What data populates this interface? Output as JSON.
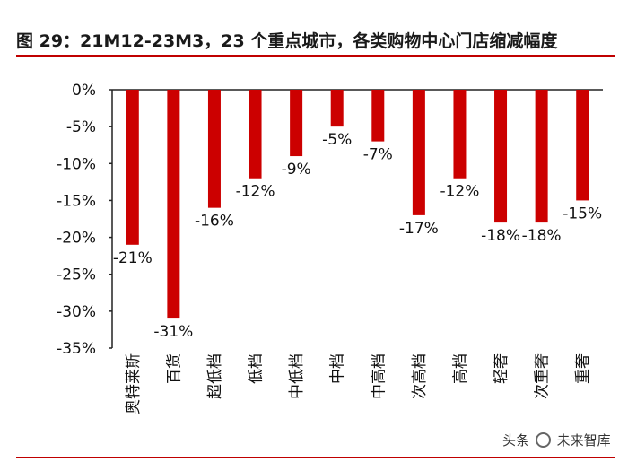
{
  "title": "图 29：21M12-23M3，23 个重点城市，各类购物中心门店缩减幅度",
  "watermark": {
    "prefix": "头条",
    "account": "未来智库",
    "icon": "at-circle-icon"
  },
  "colors": {
    "bar": "#cc0000",
    "accent": "#c00000"
  },
  "chart_data": {
    "type": "bar",
    "title": "21M12-23M3，23 个重点城市，各类购物中心门店缩减幅度",
    "xlabel": "",
    "ylabel": "",
    "categories": [
      "奥特莱斯",
      "百货",
      "超低档",
      "低档",
      "中低档",
      "中档",
      "中高档",
      "次高档",
      "高档",
      "轻奢",
      "次重奢",
      "重奢"
    ],
    "values": [
      -21,
      -31,
      -16,
      -12,
      -9,
      -5,
      -7,
      -17,
      -12,
      -18,
      -18,
      -15
    ],
    "data_labels": [
      "-21%",
      "-31%",
      "-16%",
      "-12%",
      "-9%",
      "-5%",
      "-7%",
      "-17%",
      "-12%",
      "-18%",
      "-18%",
      "-15%"
    ],
    "yticks": [
      "0%",
      "-5%",
      "-10%",
      "-15%",
      "-20%",
      "-25%",
      "-30%",
      "-35%"
    ],
    "ylim": [
      -35,
      0
    ],
    "grid": false,
    "legend": "none"
  }
}
